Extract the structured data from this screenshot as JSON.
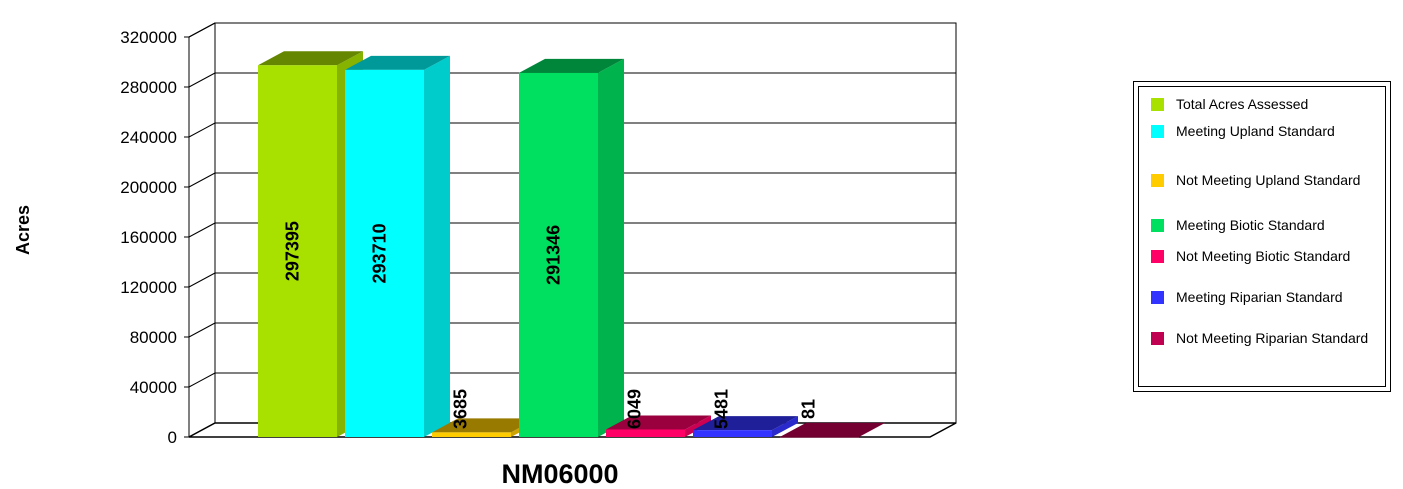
{
  "chart_data": {
    "type": "bar",
    "title": "",
    "xlabel": "",
    "ylabel": "Acres",
    "ylim": [
      0,
      320000
    ],
    "yticks": [
      "0",
      "40000",
      "80000",
      "120000",
      "160000",
      "200000",
      "240000",
      "280000",
      "320000"
    ],
    "categories": [
      "NM06000"
    ],
    "series": [
      {
        "name": "Total Acres Assessed",
        "value": 297395,
        "label": "297395",
        "color": "#a8e000"
      },
      {
        "name": "Meeting Upland Standard",
        "value": 293710,
        "label": "293710",
        "color": "#00ffff"
      },
      {
        "name": "Not Meeting Upland Standard",
        "value": 3685,
        "label": "3685",
        "color": "#ffcc00"
      },
      {
        "name": "Meeting Biotic Standard",
        "value": 291346,
        "label": "291346",
        "color": "#00e060"
      },
      {
        "name": "Not Meeting Biotic Standard",
        "value": 6049,
        "label": "6049",
        "color": "#ff0066"
      },
      {
        "name": "Meeting Riparian Standard",
        "value": 5481,
        "label": "5481",
        "color": "#3333ff"
      },
      {
        "name": "Not Meeting Riparian Standard",
        "value": 81,
        "label": "81",
        "color": "#c00050"
      }
    ],
    "grid": true,
    "legend_position": "right"
  }
}
